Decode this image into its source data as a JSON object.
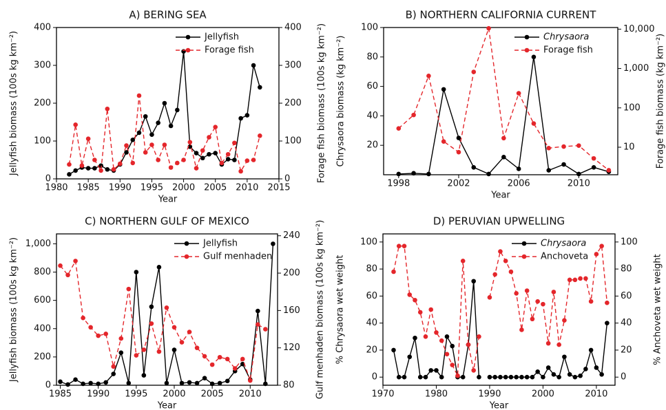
{
  "chart_data": [
    {
      "type": "line",
      "title": "A) BERING SEA",
      "xlabel": "Year",
      "ylabel": "Jellyfish biomass (100s kg km⁻²)",
      "y2label": "Forage fish biomass (100s kg km⁻²)",
      "x": [
        1982,
        1983,
        1984,
        1985,
        1986,
        1987,
        1988,
        1989,
        1990,
        1991,
        1992,
        1993,
        1994,
        1995,
        1996,
        1997,
        1998,
        1999,
        2000,
        2001,
        2002,
        2003,
        2004,
        2005,
        2006,
        2007,
        2008,
        2009,
        2010,
        2011,
        2012
      ],
      "xlim": [
        1980,
        2015
      ],
      "xticks": [
        1980,
        1985,
        1990,
        1995,
        2000,
        2005,
        2010,
        2015
      ],
      "ylim": [
        0,
        400
      ],
      "yticks": [
        0,
        100,
        200,
        300,
        400
      ],
      "y2lim": [
        0,
        400
      ],
      "y2ticks": [
        0,
        100,
        200,
        300,
        400
      ],
      "legend": "upper right",
      "series": [
        {
          "name": "Jellyfish",
          "color": "#000000",
          "linestyle": "solid",
          "axis": "y",
          "values": [
            12,
            22,
            30,
            28,
            28,
            35,
            25,
            22,
            38,
            70,
            103,
            122,
            165,
            117,
            148,
            200,
            140,
            182,
            337,
            85,
            68,
            55,
            65,
            68,
            38,
            52,
            50,
            160,
            168,
            300,
            242
          ]
        },
        {
          "name": "Forage fish",
          "color": "#e4262b",
          "linestyle": "dashed",
          "axis": "y2",
          "values": [
            38,
            143,
            35,
            106,
            50,
            22,
            185,
            25,
            40,
            88,
            42,
            220,
            70,
            90,
            50,
            90,
            30,
            42,
            50,
            97,
            28,
            75,
            110,
            137,
            42,
            65,
            95,
            20,
            48,
            50,
            114
          ]
        }
      ]
    },
    {
      "type": "line",
      "title": "B) NORTHERN CALIFORNIA CURRENT",
      "xlabel": "Year",
      "ylabel": "Chrysaora  biomass (kg km⁻²)",
      "y2label": "Forage fish biomass (kg km⁻²)",
      "x": [
        1998,
        1999,
        2000,
        2001,
        2002,
        2003,
        2004,
        2005,
        2006,
        2007,
        2008,
        2009,
        2010,
        2011,
        2012
      ],
      "xlim": [
        1997,
        2012.6
      ],
      "xticks": [
        1998,
        2002,
        2006,
        2010
      ],
      "ylim": [
        0,
        100
      ],
      "yticks": [
        20,
        40,
        60,
        80,
        100
      ],
      "y2lim": [
        2,
        11000
      ],
      "y2scale": "log",
      "y2ticks": [
        10,
        100,
        {
          "value": 1000,
          "label": "1,000"
        },
        {
          "value": 10000,
          "label": "10,000"
        }
      ],
      "legend": "upper right",
      "series": [
        {
          "name": "Chrysaora",
          "color": "#000000",
          "linestyle": "solid",
          "axis": "y",
          "italic": true,
          "values": [
            0.5,
            1,
            0.5,
            58,
            25,
            5,
            0.5,
            12,
            4,
            80,
            3,
            7,
            0.5,
            5,
            2
          ]
        },
        {
          "name": "Forage fish",
          "color": "#e4262b",
          "linestyle": "dashed",
          "axis": "y2",
          "values": [
            30,
            66,
            650,
            14,
            7.5,
            820,
            10500,
            17,
            235,
            40,
            9.5,
            10.4,
            11,
            5.2,
            2.6
          ]
        }
      ]
    },
    {
      "type": "line",
      "title": "C) NORTHERN GULF OF MEXICO",
      "xlabel": "Year",
      "ylabel": "Jellyfish biomass (100s kg km⁻²)",
      "y2label": "Gulf menhaden biomass (100s kg km⁻²)",
      "x": [
        1985,
        1986,
        1987,
        1988,
        1989,
        1990,
        1991,
        1992,
        1993,
        1994,
        1995,
        1996,
        1997,
        1998,
        1999,
        2000,
        2001,
        2002,
        2003,
        2004,
        2005,
        2006,
        2007,
        2008,
        2009,
        2010,
        2011,
        2012,
        2013
      ],
      "xlim": [
        1984.5,
        2013.6
      ],
      "xticks": [
        1985,
        1990,
        1995,
        2000,
        2005,
        2010
      ],
      "ylim": [
        0,
        1070
      ],
      "yticks": [
        0,
        200,
        400,
        600,
        800,
        {
          "value": 1000,
          "label": "1,000"
        }
      ],
      "y2lim": [
        80,
        242
      ],
      "y2ticks": [
        80,
        120,
        160,
        200,
        240
      ],
      "legend": "upper right",
      "series": [
        {
          "name": "Jellyfish",
          "color": "#000000",
          "linestyle": "solid",
          "axis": "y",
          "values": [
            25,
            5,
            40,
            10,
            15,
            10,
            20,
            80,
            230,
            15,
            800,
            70,
            555,
            835,
            15,
            250,
            15,
            20,
            15,
            50,
            10,
            15,
            30,
            100,
            150,
            40,
            525,
            10,
            1000
          ]
        },
        {
          "name": "Gulf menhaden",
          "color": "#e4262b",
          "linestyle": "dashed",
          "axis": "y2",
          "values": [
            208,
            198,
            213,
            152,
            142,
            133,
            135,
            100,
            130,
            183,
            112,
            118,
            146,
            116,
            163,
            142,
            126,
            137,
            120,
            111,
            102,
            110,
            108,
            98,
            108,
            85,
            145,
            140,
            null
          ]
        }
      ]
    },
    {
      "type": "line",
      "title": "D) PERUVIAN UPWELLING",
      "xlabel": "Year",
      "ylabel": "% Chrysaora  wet weight",
      "y2label": "% Anchoveta wet weight",
      "x": [
        1972,
        1973,
        1974,
        1975,
        1976,
        1977,
        1978,
        1979,
        1980,
        1981,
        1982,
        1983,
        1984,
        1985,
        1986,
        1987,
        1988,
        1989,
        1990,
        1991,
        1992,
        1993,
        1994,
        1995,
        1996,
        1997,
        1998,
        1999,
        2000,
        2001,
        2002,
        2003,
        2004,
        2005,
        2006,
        2007,
        2008,
        2009,
        2010,
        2011,
        2012
      ],
      "xlim": [
        1970,
        2013.5
      ],
      "xticks": [
        1970,
        1980,
        1990,
        2000,
        2010
      ],
      "ylim": [
        -6,
        106
      ],
      "yticks": [
        0,
        20,
        40,
        60,
        80,
        100
      ],
      "y2lim": [
        -6,
        106
      ],
      "y2ticks": [
        0,
        20,
        40,
        60,
        80,
        100
      ],
      "legend": "upper right",
      "series": [
        {
          "name": "Chrysaora",
          "color": "#000000",
          "linestyle": "solid",
          "axis": "y",
          "italic": true,
          "values": [
            20,
            0,
            0,
            15,
            29,
            0,
            0,
            5,
            5,
            0,
            30,
            23,
            0,
            0,
            24,
            71,
            0,
            null,
            0,
            0,
            0,
            0,
            0,
            0,
            0,
            0,
            0,
            4,
            0,
            7,
            2,
            0,
            15,
            2,
            0,
            1,
            6,
            20,
            7,
            2,
            40
          ]
        },
        {
          "name": "Anchoveta",
          "color": "#e4262b",
          "linestyle": "dashed",
          "axis": "y2",
          "values": [
            78,
            97,
            97,
            61,
            57,
            48,
            30,
            50,
            33,
            27,
            17,
            9,
            1,
            86,
            24,
            5,
            30,
            null,
            59,
            76,
            93,
            86,
            78,
            62,
            35,
            64,
            43,
            56,
            54,
            25,
            63,
            24,
            42,
            72,
            72,
            73,
            73,
            56,
            91,
            97,
            55
          ]
        }
      ]
    }
  ]
}
